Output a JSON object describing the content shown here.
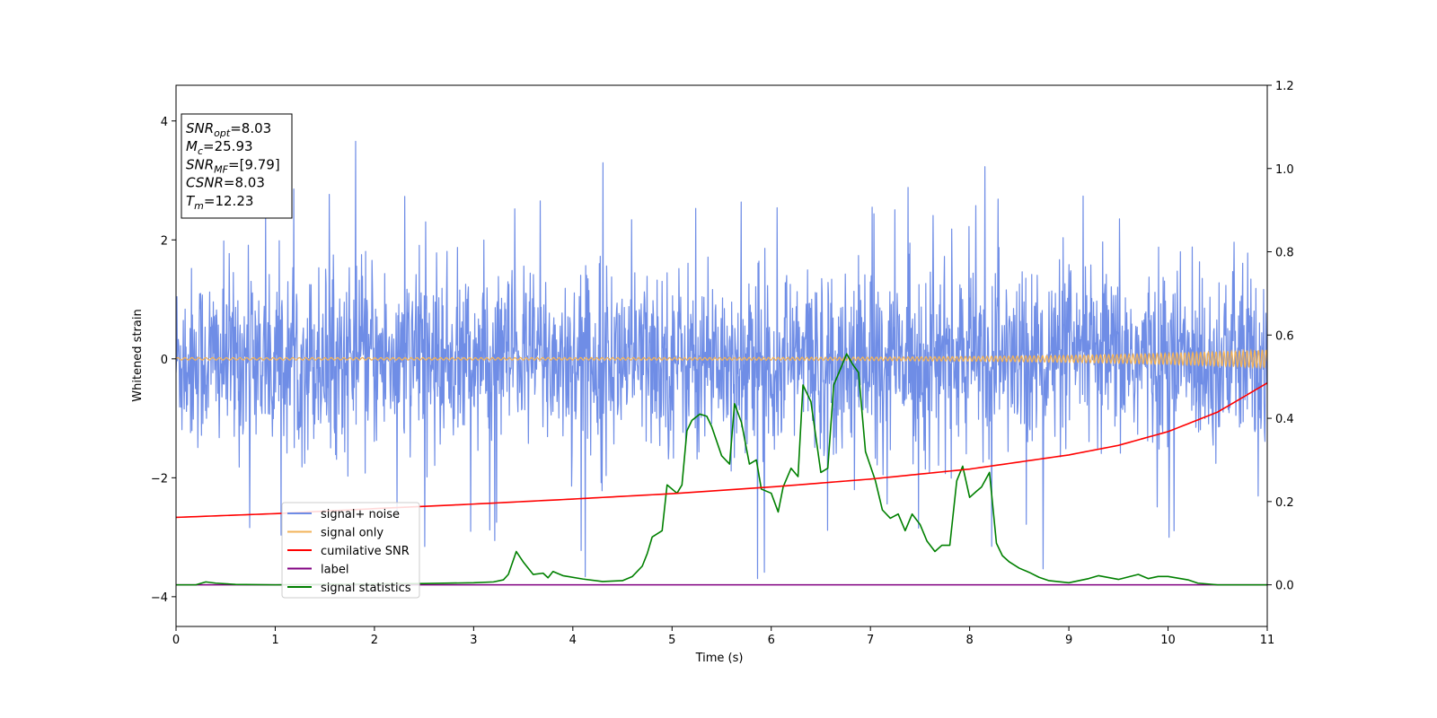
{
  "chart_data": {
    "type": "line",
    "xlabel": "Time (s)",
    "ylabel": "Whitened strain",
    "xlim": [
      0,
      11
    ],
    "ylim_left": [
      -4.5,
      4.6
    ],
    "ylim_right": [
      -0.1,
      1.2
    ],
    "x_ticks": [
      "0",
      "1",
      "2",
      "3",
      "4",
      "5",
      "6",
      "7",
      "8",
      "9",
      "10",
      "11"
    ],
    "y_ticks_left": [
      "−4",
      "−2",
      "0",
      "2",
      "4"
    ],
    "y_ticks_right": [
      "0.0",
      "0.2",
      "0.4",
      "0.6",
      "0.8",
      "1.0",
      "1.2"
    ],
    "grid": false,
    "legend_position": "lower-left",
    "annotation": {
      "lines": [
        {
          "sym": "SNR",
          "sub": "opt",
          "value": "=8.03"
        },
        {
          "sym": "M",
          "sub": "c",
          "value": "=25.93"
        },
        {
          "sym": "SNR",
          "sub": "MF",
          "value": "=[9.79]"
        },
        {
          "sym": "CSNR",
          "sub": "",
          "value": "=8.03"
        },
        {
          "sym": "T",
          "sub": "m",
          "value": "=12.23"
        }
      ]
    },
    "series": [
      {
        "name": "signal+ noise",
        "axis": "left",
        "color": "#6f8de6",
        "noise_std": 0.75,
        "spike_max": 3.7
      },
      {
        "name": "signal only",
        "axis": "left",
        "color": "#f2b35a",
        "chirp_amp_start": 0.02,
        "chirp_amp_end": 0.15
      },
      {
        "name": "cumilative SNR",
        "axis": "right",
        "color": "#ff0000",
        "x": [
          0,
          1,
          2,
          3,
          4,
          5,
          6,
          7,
          8,
          9,
          9.5,
          10,
          10.5,
          11
        ],
        "y": [
          0.162,
          0.171,
          0.183,
          0.194,
          0.206,
          0.219,
          0.235,
          0.254,
          0.278,
          0.312,
          0.335,
          0.368,
          0.415,
          0.485
        ]
      },
      {
        "name": "label",
        "axis": "right",
        "color": "#800080",
        "x": [
          0,
          11
        ],
        "y": [
          0,
          0
        ]
      },
      {
        "name": "signal statistics",
        "axis": "right",
        "color": "#008000",
        "x": [
          0,
          0.2,
          0.3,
          0.4,
          0.6,
          1,
          2,
          2.5,
          3,
          3.2,
          3.3,
          3.35,
          3.43,
          3.5,
          3.6,
          3.7,
          3.75,
          3.8,
          3.9,
          4.1,
          4.3,
          4.5,
          4.6,
          4.7,
          4.75,
          4.8,
          4.9,
          4.95,
          5.05,
          5.1,
          5.15,
          5.2,
          5.28,
          5.35,
          5.4,
          5.5,
          5.58,
          5.63,
          5.7,
          5.78,
          5.85,
          5.9,
          6.0,
          6.07,
          6.12,
          6.2,
          6.27,
          6.32,
          6.4,
          6.5,
          6.57,
          6.63,
          6.7,
          6.76,
          6.82,
          6.88,
          6.95,
          7.05,
          7.12,
          7.2,
          7.28,
          7.35,
          7.42,
          7.5,
          7.57,
          7.65,
          7.72,
          7.8,
          7.87,
          7.93,
          8.0,
          8.07,
          8.12,
          8.2,
          8.27,
          8.33,
          8.4,
          8.5,
          8.6,
          8.7,
          8.8,
          9.0,
          9.2,
          9.3,
          9.5,
          9.7,
          9.8,
          9.9,
          10.0,
          10.2,
          10.3,
          10.5,
          11.0
        ],
        "y": [
          0,
          0,
          0.007,
          0.004,
          0.001,
          0.0,
          0.002,
          0.003,
          0.005,
          0.007,
          0.012,
          0.025,
          0.08,
          0.055,
          0.025,
          0.028,
          0.017,
          0.032,
          0.022,
          0.014,
          0.008,
          0.01,
          0.02,
          0.045,
          0.075,
          0.115,
          0.13,
          0.24,
          0.22,
          0.24,
          0.37,
          0.395,
          0.41,
          0.405,
          0.38,
          0.31,
          0.29,
          0.435,
          0.39,
          0.29,
          0.3,
          0.23,
          0.22,
          0.175,
          0.235,
          0.28,
          0.26,
          0.48,
          0.44,
          0.27,
          0.28,
          0.48,
          0.52,
          0.555,
          0.53,
          0.51,
          0.32,
          0.25,
          0.18,
          0.16,
          0.17,
          0.13,
          0.17,
          0.145,
          0.105,
          0.08,
          0.095,
          0.095,
          0.25,
          0.285,
          0.21,
          0.225,
          0.235,
          0.27,
          0.1,
          0.07,
          0.055,
          0.04,
          0.03,
          0.018,
          0.01,
          0.005,
          0.015,
          0.022,
          0.013,
          0.025,
          0.015,
          0.02,
          0.02,
          0.012,
          0.004,
          0.0,
          0.0
        ]
      }
    ]
  }
}
